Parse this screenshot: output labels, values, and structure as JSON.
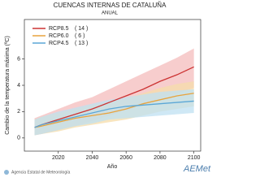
{
  "chart_data": {
    "type": "line",
    "title": "CUENCAS INTERNAS DE CATALUÑA",
    "subtitle": "ANUAL",
    "y_label": "Cambio de la temperatura máxima (ºC)",
    "x_label": "Año",
    "x": [
      2006,
      2010,
      2020,
      2030,
      2040,
      2050,
      2060,
      2070,
      2080,
      2090,
      2100
    ],
    "xlim": [
      2000,
      2104
    ],
    "xticks": [
      2020,
      2040,
      2060,
      2080,
      2100
    ],
    "ylim": [
      -1,
      9
    ],
    "yticks": [
      0,
      2,
      4,
      6
    ],
    "grid": false,
    "legend": "upper-left",
    "series": [
      {
        "name": "RCP8.5",
        "runs": "( 14 )",
        "color": "#cc3333",
        "band_color": "#f4bcbc",
        "values": [
          0.8,
          1.0,
          1.4,
          1.8,
          2.2,
          2.7,
          3.2,
          3.7,
          4.3,
          4.8,
          5.4
        ],
        "low": [
          0.2,
          0.3,
          0.6,
          0.9,
          1.3,
          1.7,
          2.1,
          2.5,
          3.0,
          3.4,
          3.8
        ],
        "high": [
          1.5,
          1.7,
          2.2,
          2.7,
          3.1,
          3.7,
          4.3,
          4.9,
          5.5,
          6.1,
          6.8
        ]
      },
      {
        "name": "RCP6.0",
        "runs": "( 6 )",
        "color": "#e8a33d",
        "band_color": "#f6dcaa",
        "values": [
          0.8,
          0.9,
          1.2,
          1.5,
          1.7,
          1.9,
          2.2,
          2.6,
          2.9,
          3.2,
          3.4
        ],
        "low": [
          0.2,
          0.3,
          0.5,
          0.8,
          1.0,
          1.2,
          1.4,
          1.7,
          2.0,
          2.2,
          2.4
        ],
        "high": [
          1.4,
          1.6,
          1.9,
          2.2,
          2.5,
          2.7,
          3.0,
          3.4,
          3.8,
          4.1,
          4.3
        ]
      },
      {
        "name": "RCP4.5",
        "runs": "( 13 )",
        "color": "#5ba7d6",
        "band_color": "#bfe0f1",
        "values": [
          0.8,
          1.0,
          1.3,
          1.6,
          1.9,
          2.2,
          2.4,
          2.5,
          2.6,
          2.7,
          2.8
        ],
        "low": [
          0.2,
          0.3,
          0.6,
          0.9,
          1.1,
          1.4,
          1.5,
          1.6,
          1.7,
          1.8,
          1.9
        ],
        "high": [
          1.4,
          1.6,
          2.0,
          2.3,
          2.6,
          2.9,
          3.1,
          3.3,
          3.5,
          3.6,
          3.7
        ]
      }
    ]
  },
  "footer": "Agencia Estatal de Meteorología",
  "logo": "AEMet"
}
